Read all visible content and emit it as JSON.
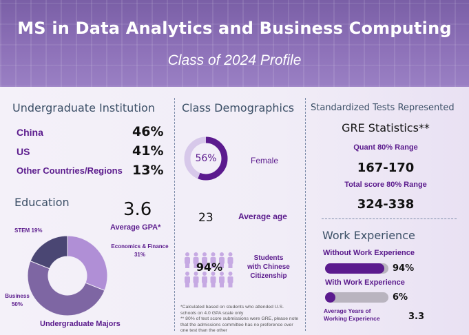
{
  "header": {
    "title": "MS in Data Analytics and Business Computing",
    "subtitle": "Class of 2024 Profile"
  },
  "institution": {
    "title": "Undergraduate Institution",
    "rows": [
      {
        "label": "China",
        "value": "46%"
      },
      {
        "label": "US",
        "value": "41%"
      },
      {
        "label": "Other Countries/Regions",
        "value": "13%"
      }
    ]
  },
  "education": {
    "title": "Education",
    "gpa": "3.6",
    "gpa_label": "Average GPA*",
    "majors_label": "Undergraduate Majors",
    "majors": [
      {
        "name": "Economics & Finance",
        "pct": "31%",
        "value": 31,
        "color": "#b08fd6"
      },
      {
        "name": "Business",
        "pct": "50%",
        "value": 50,
        "color": "#7e66a3"
      },
      {
        "name": "STEM",
        "pct": "19%",
        "value": 19,
        "color": "#4a4673"
      }
    ]
  },
  "demographics": {
    "title": "Class Demographics",
    "female_pct": "56%",
    "female_value": 56,
    "female_label": "Female",
    "avg_age": "23",
    "avg_age_label": "Average age",
    "chinese_pct": "94%",
    "chinese_label_1": "Students",
    "chinese_label_2": "with Chinese",
    "chinese_label_3": "Citizenship",
    "note_1": "*Calculated based on students who attended U.S.",
    "note_2": "schools on 4.0 GPA scale only",
    "note_3": "** 80% of test score submissions were GRE, please note",
    "note_4": "that the admissions committee has no preference over",
    "note_5": "one test than the other"
  },
  "tests": {
    "title": "Standardized Tests Represented",
    "gre_title": "GRE Statistics**",
    "quant_label": "Quant 80% Range",
    "quant_value": "167-170",
    "total_label": "Total score 80% Range",
    "total_value": "324-338"
  },
  "work": {
    "title": "Work Experience",
    "without_label": "Without Work Experience",
    "without_pct": "94%",
    "without_value": 94,
    "with_label": "With Work Experience",
    "with_pct": "6%",
    "with_value": 6,
    "years_label_1": "Average Years of",
    "years_label_2": "Working Experience",
    "years_value": "3.3"
  },
  "colors": {
    "accent": "#5b1a8e",
    "heading": "#3b4f66",
    "track": "#b9b4bf"
  }
}
